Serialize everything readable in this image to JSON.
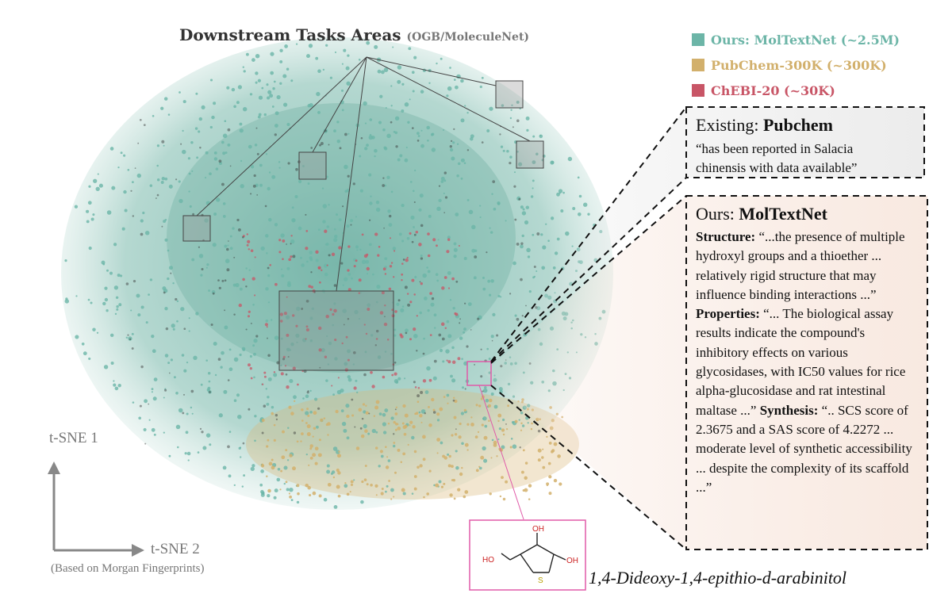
{
  "title": {
    "main": "Downstream Tasks Areas",
    "sub": "(OGB/MoleculeNet)"
  },
  "legend": [
    {
      "label": "Ours: MolTextNet (~2.5M)",
      "color": "#6cb5a7"
    },
    {
      "label": "PubChem-300K (~300K)",
      "color": "#d2b06c"
    },
    {
      "label": "ChEBI-20 (~30K)",
      "color": "#c85566"
    }
  ],
  "existing": {
    "prefix": "Existing: ",
    "name": "Pubchem",
    "quote_line1": "“has been reported in Salacia",
    "quote_line2": "chinensis with data available”"
  },
  "ours": {
    "prefix": "Ours: ",
    "name": "MolTextNet",
    "structure_label": "Structure:",
    "structure_text": " “...the presence of multiple hydroxyl groups and a thioether ... relatively rigid structure that may influence binding interactions ...”",
    "properties_label": "Properties:",
    "properties_text": " “... The biological assay results indicate the compound's inhibitory effects on various glycosidases, with IC50 values for rice alpha-glucosidase and rat intestinal maltase ...”",
    "synthesis_label": "Synthesis:",
    "synthesis_text": " “.. SCS score of 2.3675 and a SAS score of 4.2272 ... moderate level of synthetic accessibility ... despite the complexity of its scaffold ...”"
  },
  "axes": {
    "y_label": "t-SNE 1",
    "x_label": "t-SNE 2",
    "note": "(Based on Morgan Fingerprints)"
  },
  "molecule": {
    "name": "1,4-Dideoxy-1,4-epithio-d-arabinitol",
    "atom_oh": "OH",
    "atom_ho": "HO",
    "atom_s": "S"
  }
}
